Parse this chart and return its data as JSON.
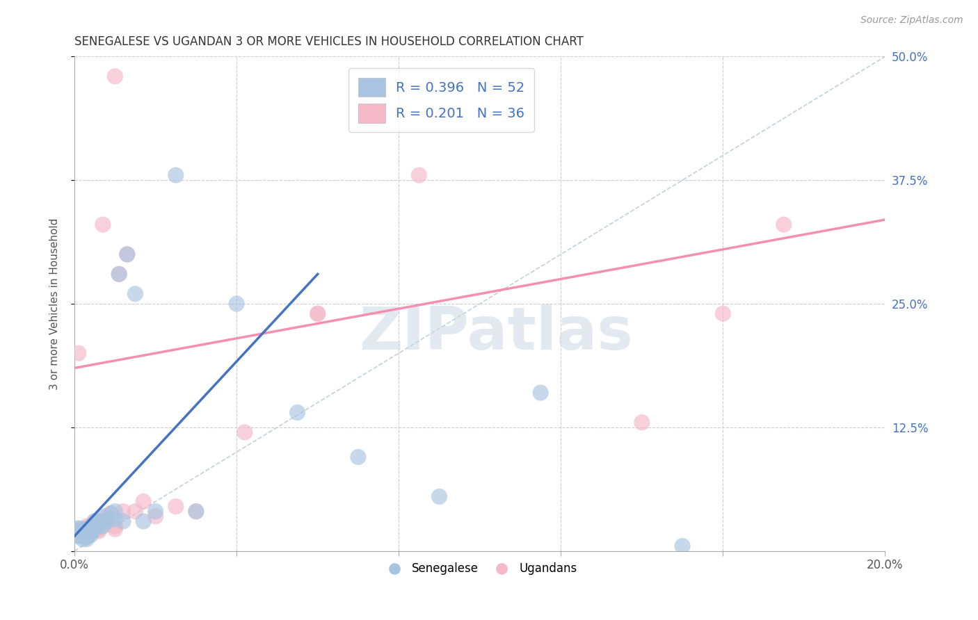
{
  "title": "SENEGALESE VS UGANDAN 3 OR MORE VEHICLES IN HOUSEHOLD CORRELATION CHART",
  "source": "Source: ZipAtlas.com",
  "ylabel": "3 or more Vehicles in Household",
  "watermark": "ZIPatlas",
  "xmin": 0.0,
  "xmax": 0.2,
  "ymin": 0.0,
  "ymax": 0.5,
  "ytick_labels": [
    "",
    "12.5%",
    "25.0%",
    "37.5%",
    "50.0%"
  ],
  "blue_R": 0.396,
  "blue_N": 52,
  "pink_R": 0.201,
  "pink_N": 36,
  "blue_color": "#a8c4e0",
  "pink_color": "#f4b8c8",
  "blue_line_color": "#4472c4",
  "pink_line_color": "#f48fb1",
  "diag_line_color": "#b8cdd8",
  "legend_blue_fill": "#a8c4e0",
  "legend_pink_fill": "#f4b8c8",
  "blue_scatter_x": [
    0.001,
    0.001,
    0.001,
    0.001,
    0.001,
    0.002,
    0.002,
    0.002,
    0.002,
    0.002,
    0.002,
    0.003,
    0.003,
    0.003,
    0.003,
    0.003,
    0.003,
    0.003,
    0.004,
    0.004,
    0.004,
    0.004,
    0.004,
    0.005,
    0.005,
    0.005,
    0.005,
    0.006,
    0.006,
    0.006,
    0.007,
    0.007,
    0.007,
    0.008,
    0.008,
    0.009,
    0.01,
    0.01,
    0.011,
    0.012,
    0.013,
    0.015,
    0.017,
    0.02,
    0.025,
    0.03,
    0.04,
    0.055,
    0.07,
    0.09,
    0.115,
    0.15
  ],
  "blue_scatter_y": [
    0.02,
    0.022,
    0.018,
    0.015,
    0.023,
    0.022,
    0.02,
    0.018,
    0.017,
    0.015,
    0.012,
    0.022,
    0.02,
    0.018,
    0.016,
    0.015,
    0.014,
    0.012,
    0.025,
    0.022,
    0.02,
    0.018,
    0.016,
    0.03,
    0.028,
    0.025,
    0.022,
    0.03,
    0.028,
    0.025,
    0.035,
    0.028,
    0.025,
    0.032,
    0.03,
    0.038,
    0.04,
    0.032,
    0.28,
    0.03,
    0.3,
    0.26,
    0.03,
    0.04,
    0.38,
    0.04,
    0.25,
    0.14,
    0.095,
    0.055,
    0.16,
    0.005
  ],
  "pink_scatter_x": [
    0.001,
    0.002,
    0.002,
    0.003,
    0.003,
    0.003,
    0.004,
    0.004,
    0.004,
    0.005,
    0.005,
    0.006,
    0.006,
    0.007,
    0.007,
    0.008,
    0.008,
    0.009,
    0.01,
    0.01,
    0.011,
    0.012,
    0.013,
    0.015,
    0.017,
    0.02,
    0.025,
    0.03,
    0.042,
    0.06,
    0.085,
    0.14,
    0.16,
    0.175,
    0.01,
    0.06
  ],
  "pink_scatter_y": [
    0.2,
    0.022,
    0.02,
    0.025,
    0.022,
    0.018,
    0.025,
    0.022,
    0.02,
    0.03,
    0.025,
    0.022,
    0.02,
    0.33,
    0.03,
    0.035,
    0.028,
    0.038,
    0.025,
    0.022,
    0.28,
    0.04,
    0.3,
    0.04,
    0.05,
    0.035,
    0.045,
    0.04,
    0.12,
    0.24,
    0.38,
    0.13,
    0.24,
    0.33,
    0.48,
    0.24
  ],
  "blue_line_x0": 0.0,
  "blue_line_x1": 0.06,
  "blue_line_y0": 0.015,
  "blue_line_y1": 0.28,
  "pink_line_x0": 0.0,
  "pink_line_x1": 0.2,
  "pink_line_y0": 0.185,
  "pink_line_y1": 0.335
}
